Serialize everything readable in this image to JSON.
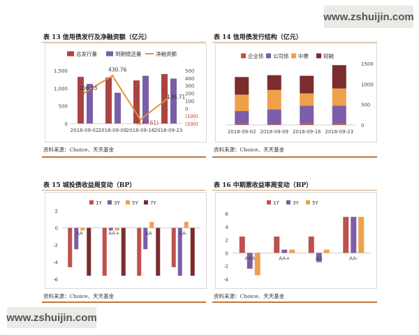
{
  "watermark": {
    "top": "www.zshuijin.com",
    "bottom": "www.zshuijin.com"
  },
  "panels": {
    "p13": {
      "title": "表 13  信用债发行及净融资额（亿元）",
      "source": "资料来源：Choice、天天基金"
    },
    "p14": {
      "title": "表 14  信用债发行结构（亿元）",
      "source": "资料来源：Choice、天天基金"
    },
    "p15": {
      "title": "表 15  城投债收益周变动（BP）",
      "source": "资料来源：Choice、天天基金"
    },
    "p16": {
      "title": "表 16  中期票收益率周变动（BP）",
      "source": "资料来源：Choice、天天基金"
    }
  },
  "chart_data": [
    {
      "id": "chart13",
      "type": "bar",
      "categories": [
        "2018-09-02",
        "2018-09-09",
        "2018-09-16",
        "2018-09-23"
      ],
      "series": [
        {
          "name": "总发行量",
          "type": "bar",
          "axis": "left",
          "color": "#a94442",
          "values": [
            1320,
            1300,
            1220,
            1400
          ]
        },
        {
          "name": "到期偿还量",
          "type": "bar",
          "axis": "left",
          "color": "#7b5ea7",
          "values": [
            1120,
            870,
            1350,
            1270
          ]
        },
        {
          "name": "净融资额",
          "type": "line",
          "axis": "right",
          "color": "#e8913a",
          "values": [
            206.33,
            430.76,
            -147.61,
            136.71
          ]
        }
      ],
      "data_labels": [
        "206.33",
        "430.76",
        "(147.61)",
        "136.71"
      ],
      "left_axis": {
        "ylim": [
          0,
          1500
        ],
        "ticks": [
          "0",
          "500",
          "1,000",
          "1,500"
        ]
      },
      "right_axis": {
        "ylim": [
          -200,
          500
        ],
        "ticks": [
          "(200)",
          "(100)",
          "0",
          "100",
          "200",
          "300",
          "400",
          "500"
        ]
      },
      "legend": "top"
    },
    {
      "id": "chart14",
      "type": "bar",
      "stacked": true,
      "categories": [
        "2018-09-02",
        "2018-09-09",
        "2018-09-16",
        "2018-09-23"
      ],
      "series": [
        {
          "name": "企业债",
          "color": "#c0504d",
          "values": [
            20,
            15,
            40,
            30
          ]
        },
        {
          "name": "公司债",
          "color": "#7b5ea7",
          "values": [
            320,
            360,
            430,
            440
          ]
        },
        {
          "name": "中票",
          "color": "#f0a04b",
          "values": [
            400,
            480,
            300,
            420
          ]
        },
        {
          "name": "短融",
          "color": "#7b2c2c",
          "values": [
            430,
            360,
            430,
            570
          ]
        }
      ],
      "ylim": [
        0,
        1500
      ],
      "ticks": [
        "0",
        "500",
        "1000",
        "1500"
      ],
      "legend": "top"
    },
    {
      "id": "chart15",
      "type": "bar",
      "categories": [
        "AA",
        "AA+",
        "AA",
        "AA-"
      ],
      "series": [
        {
          "name": "1Y",
          "color": "#c0504d",
          "values": [
            -4.6,
            -5.6,
            -5.6,
            -4.6
          ]
        },
        {
          "name": "3Y",
          "color": "#7b5ea7",
          "values": [
            -2.5,
            -0.3,
            -2.5,
            -5.6
          ]
        },
        {
          "name": "5Y",
          "color": "#f0a04b",
          "values": [
            -0.3,
            -0.3,
            0.7,
            0.7
          ]
        },
        {
          "name": "7Y",
          "color": "#7b2c2c",
          "values": [
            -5.6,
            -5.6,
            -5.6,
            -5.6
          ]
        }
      ],
      "ylim": [
        -6,
        2
      ],
      "ticks": [
        "-6",
        "-4",
        "-2",
        "0",
        "2"
      ],
      "legend": "top"
    },
    {
      "id": "chart16",
      "type": "bar",
      "categories": [
        "AAA",
        "AA+",
        "AA",
        "AA-"
      ],
      "series": [
        {
          "name": "1Y",
          "color": "#c0504d",
          "values": [
            2.5,
            2.5,
            2.5,
            5.5
          ]
        },
        {
          "name": "3Y",
          "color": "#7b5ea7",
          "values": [
            -2.4,
            0.5,
            -1.4,
            5.5
          ]
        },
        {
          "name": "5Y",
          "color": "#f0a04b",
          "values": [
            -3.4,
            0.5,
            0.5,
            5.5
          ]
        }
      ],
      "ylim": [
        -4,
        6
      ],
      "ticks": [
        "-4",
        "-2",
        "0",
        "2",
        "4",
        "6"
      ],
      "legend": "top"
    }
  ]
}
